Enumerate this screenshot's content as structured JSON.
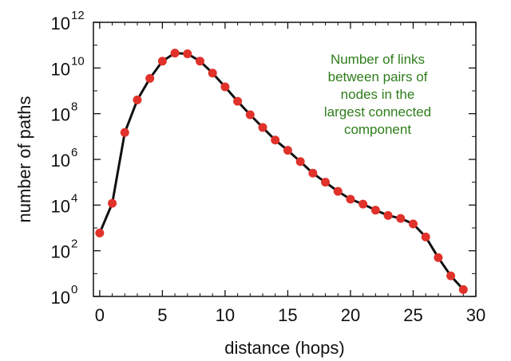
{
  "chart_data": {
    "type": "line",
    "xlabel": "distance (hops)",
    "ylabel": "number of paths",
    "xlim": [
      -0.5,
      30
    ],
    "y_scale": "log10",
    "ylim": [
      1,
      1000000000000.0
    ],
    "x_ticks": [
      0,
      5,
      10,
      15,
      20,
      25,
      30
    ],
    "y_ticks": [
      {
        "base": "10",
        "exp": "0",
        "value": 1
      },
      {
        "base": "10",
        "exp": "2",
        "value": 100
      },
      {
        "base": "10",
        "exp": "4",
        "value": 10000
      },
      {
        "base": "10",
        "exp": "6",
        "value": 1000000
      },
      {
        "base": "10",
        "exp": "8",
        "value": 100000000
      },
      {
        "base": "10",
        "exp": "10",
        "value": 10000000000
      },
      {
        "base": "10",
        "exp": "12",
        "value": 1000000000000
      }
    ],
    "annotation": [
      "Number of links",
      "between pairs of",
      "nodes in the",
      "largest connected",
      "component"
    ],
    "grid": false,
    "line_color": "#111111",
    "marker_color": "#e0322a",
    "annotation_color": "#2e7d1b",
    "x": [
      0,
      1,
      2,
      3,
      4,
      5,
      6,
      7,
      8,
      9,
      10,
      11,
      12,
      13,
      14,
      15,
      16,
      17,
      18,
      19,
      20,
      21,
      22,
      23,
      24,
      25,
      26,
      27,
      28,
      29
    ],
    "values": [
      600,
      12000,
      15000000.0,
      400000000.0,
      3500000000.0,
      20000000000.0,
      45000000000.0,
      42000000000.0,
      20000000000.0,
      6000000000.0,
      1500000000.0,
      350000000.0,
      90000000.0,
      25000000.0,
      7000000.0,
      2500000.0,
      800000.0,
      250000.0,
      100000.0,
      40000.0,
      18000.0,
      11000.0,
      6000,
      3500,
      2600,
      1500,
      400,
      50,
      8,
      2
    ]
  }
}
